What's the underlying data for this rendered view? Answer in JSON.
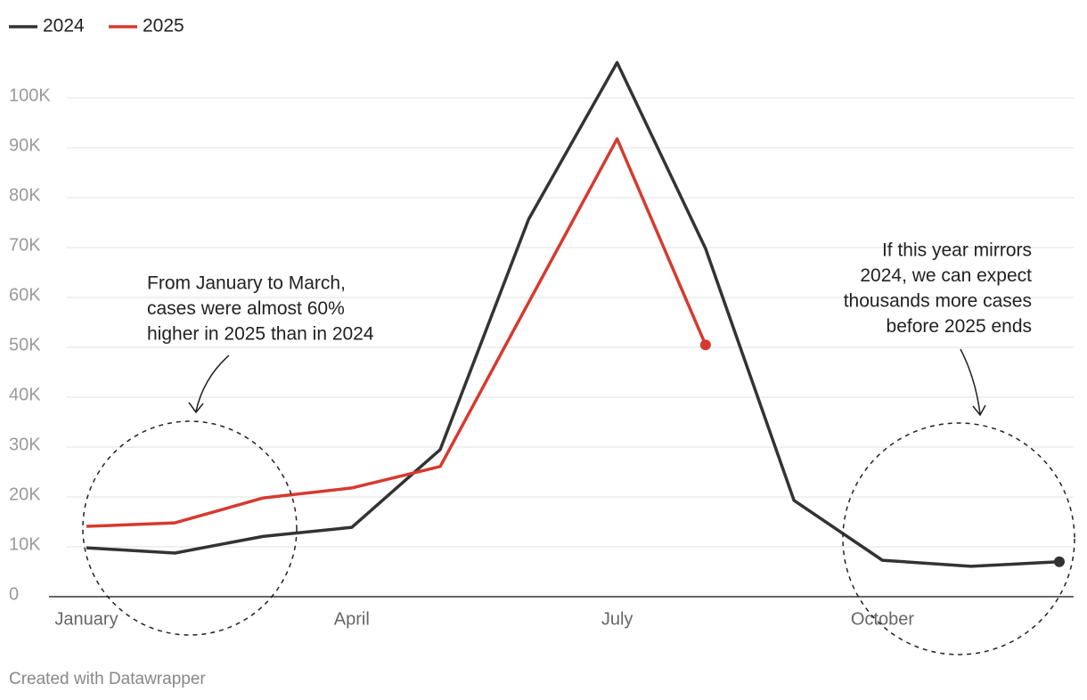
{
  "chart_data": {
    "type": "line",
    "categories": [
      "January",
      null,
      null,
      "April",
      null,
      null,
      "July",
      null,
      null,
      "October",
      null,
      null
    ],
    "series": [
      {
        "name": "2024",
        "color": "#333333",
        "values": [
          9800,
          8750,
          12100,
          13900,
          29500,
          75700,
          107100,
          69800,
          19300,
          7300,
          6100,
          7000
        ]
      },
      {
        "name": "2025",
        "color": "#d63a2f",
        "values": [
          14100,
          14800,
          19800,
          21800,
          26100,
          59000,
          91800,
          50500,
          null,
          null,
          null,
          null
        ]
      }
    ],
    "ylim": [
      0,
      100000
    ],
    "yticks": [
      0,
      {
        "value": 10000,
        "label": "10K"
      },
      {
        "value": 20000,
        "label": "20K"
      },
      {
        "value": 30000,
        "label": "30K"
      },
      {
        "value": 40000,
        "label": "40K"
      },
      {
        "value": 50000,
        "label": "50K"
      },
      {
        "value": 60000,
        "label": "60K"
      },
      {
        "value": 70000,
        "label": "70K"
      },
      {
        "value": 80000,
        "label": "80K"
      },
      {
        "value": 90000,
        "label": "90K"
      },
      {
        "value": 100000,
        "label": "100K"
      }
    ],
    "grid": true,
    "legend": "top-left",
    "annotations": [
      {
        "lines": [
          "From January to March,",
          "cases were almost 60%",
          "higher in 2025 than in 2024"
        ]
      },
      {
        "lines": [
          "If this year mirrors",
          "2024, we can expect",
          "thousands more cases",
          "before 2025 ends"
        ]
      }
    ],
    "credit": "Created with Datawrapper"
  }
}
